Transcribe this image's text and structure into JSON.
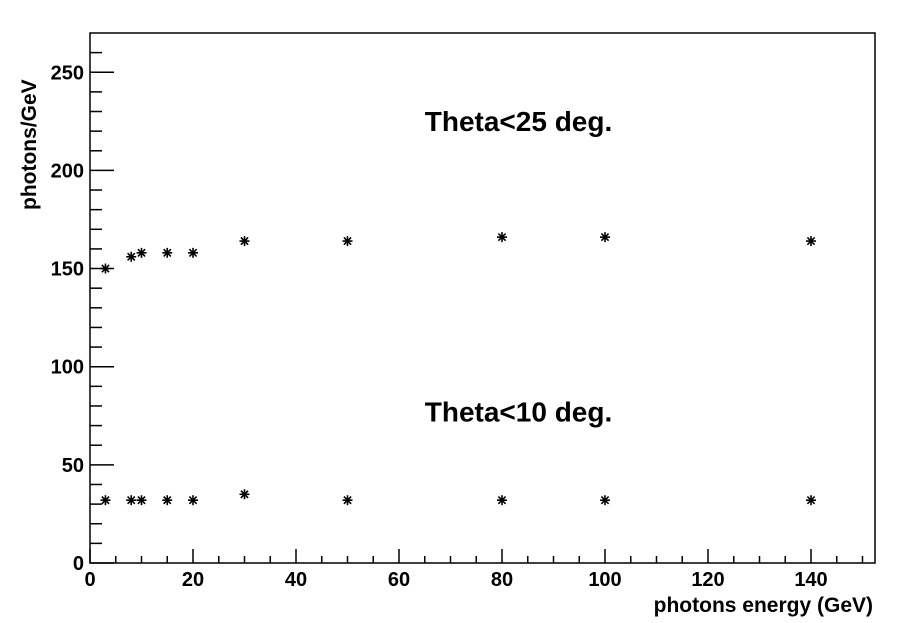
{
  "chart_data": {
    "type": "scatter",
    "title": "",
    "xlabel": "photons energy (GeV)",
    "ylabel": "photons/GeV",
    "xlim": [
      0,
      153
    ],
    "ylim": [
      0,
      270
    ],
    "x_ticks": [
      0,
      20,
      40,
      60,
      80,
      100,
      120,
      140
    ],
    "y_ticks": [
      0,
      50,
      100,
      150,
      200,
      250
    ],
    "grid": false,
    "marker": "asterisk",
    "marker_color": "#000000",
    "series": [
      {
        "x": [
          3,
          8,
          10,
          15,
          20,
          30,
          50,
          80,
          100,
          140
        ],
        "y": [
          150,
          156,
          158,
          158,
          158,
          164,
          164,
          166,
          166,
          164
        ]
      },
      {
        "x": [
          3,
          8,
          10,
          15,
          20,
          30,
          50,
          80,
          100,
          140
        ],
        "y": [
          32,
          32,
          32,
          32,
          32,
          35,
          32,
          32,
          32,
          32
        ]
      }
    ],
    "annotations": [
      {
        "text": "Theta<25 deg.",
        "x": 65,
        "y": 220
      },
      {
        "text": "Theta<10 deg.",
        "x": 65,
        "y": 72
      }
    ]
  }
}
